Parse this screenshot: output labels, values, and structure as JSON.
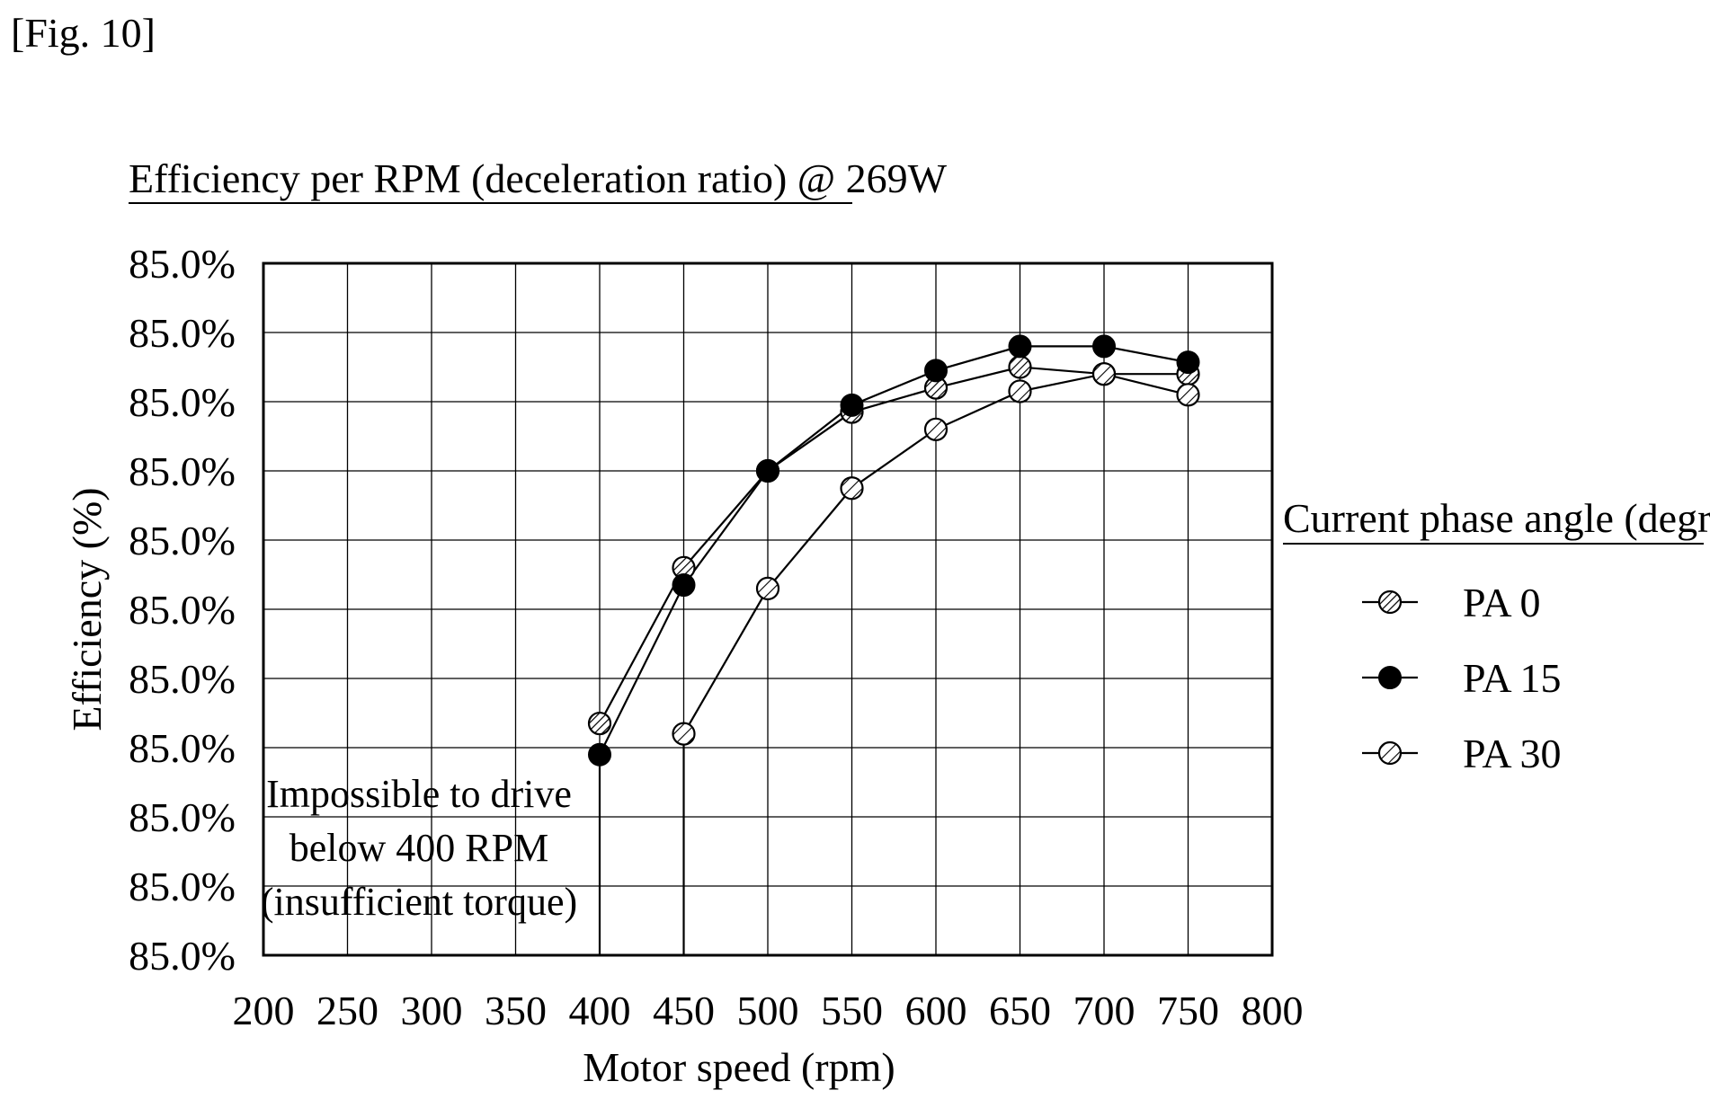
{
  "figure_label": "[Fig. 10]",
  "chart_data": {
    "type": "line",
    "title": "Efficiency per RPM (deceleration ratio) @ 269W",
    "xlabel": "Motor speed (rpm)",
    "ylabel": "Efficiency (%)",
    "xlim": [
      200,
      800
    ],
    "x_ticks": [
      "200",
      "250",
      "300",
      "350",
      "400",
      "450",
      "500",
      "550",
      "600",
      "650",
      "700",
      "750",
      "800"
    ],
    "y_tick_labels": [
      "85.0%",
      "85.0%",
      "85.0%",
      "85.0%",
      "85.0%",
      "85.0%",
      "85.0%",
      "85.0%",
      "85.0%",
      "85.0%",
      "85.0%"
    ],
    "ylim": [
      0,
      10
    ],
    "grid": true,
    "legend_title": "Current phase angle (degree)",
    "legend_position": "right",
    "series": [
      {
        "name": "PA 0",
        "marker": "hatched-circle",
        "x": [
          400,
          450,
          500,
          550,
          600,
          650,
          700,
          750
        ],
        "y": [
          3.35,
          5.6,
          7.0,
          7.85,
          8.2,
          8.5,
          8.4,
          8.4
        ]
      },
      {
        "name": "PA 15",
        "marker": "filled-circle",
        "x": [
          400,
          450,
          500,
          550,
          600,
          650,
          700,
          750
        ],
        "y": [
          2.9,
          5.35,
          7.0,
          7.95,
          8.45,
          8.8,
          8.8,
          8.57
        ]
      },
      {
        "name": "PA 30",
        "marker": "hatched-circle-open",
        "x": [
          450,
          500,
          550,
          600,
          650,
          700,
          750
        ],
        "y": [
          3.2,
          5.3,
          6.75,
          7.6,
          8.15,
          8.4,
          8.1
        ]
      }
    ],
    "annotation": [
      "Impossible to drive",
      "below 400 RPM",
      "(insufficient torque)"
    ],
    "drop_lines_x": [
      400,
      450
    ]
  }
}
